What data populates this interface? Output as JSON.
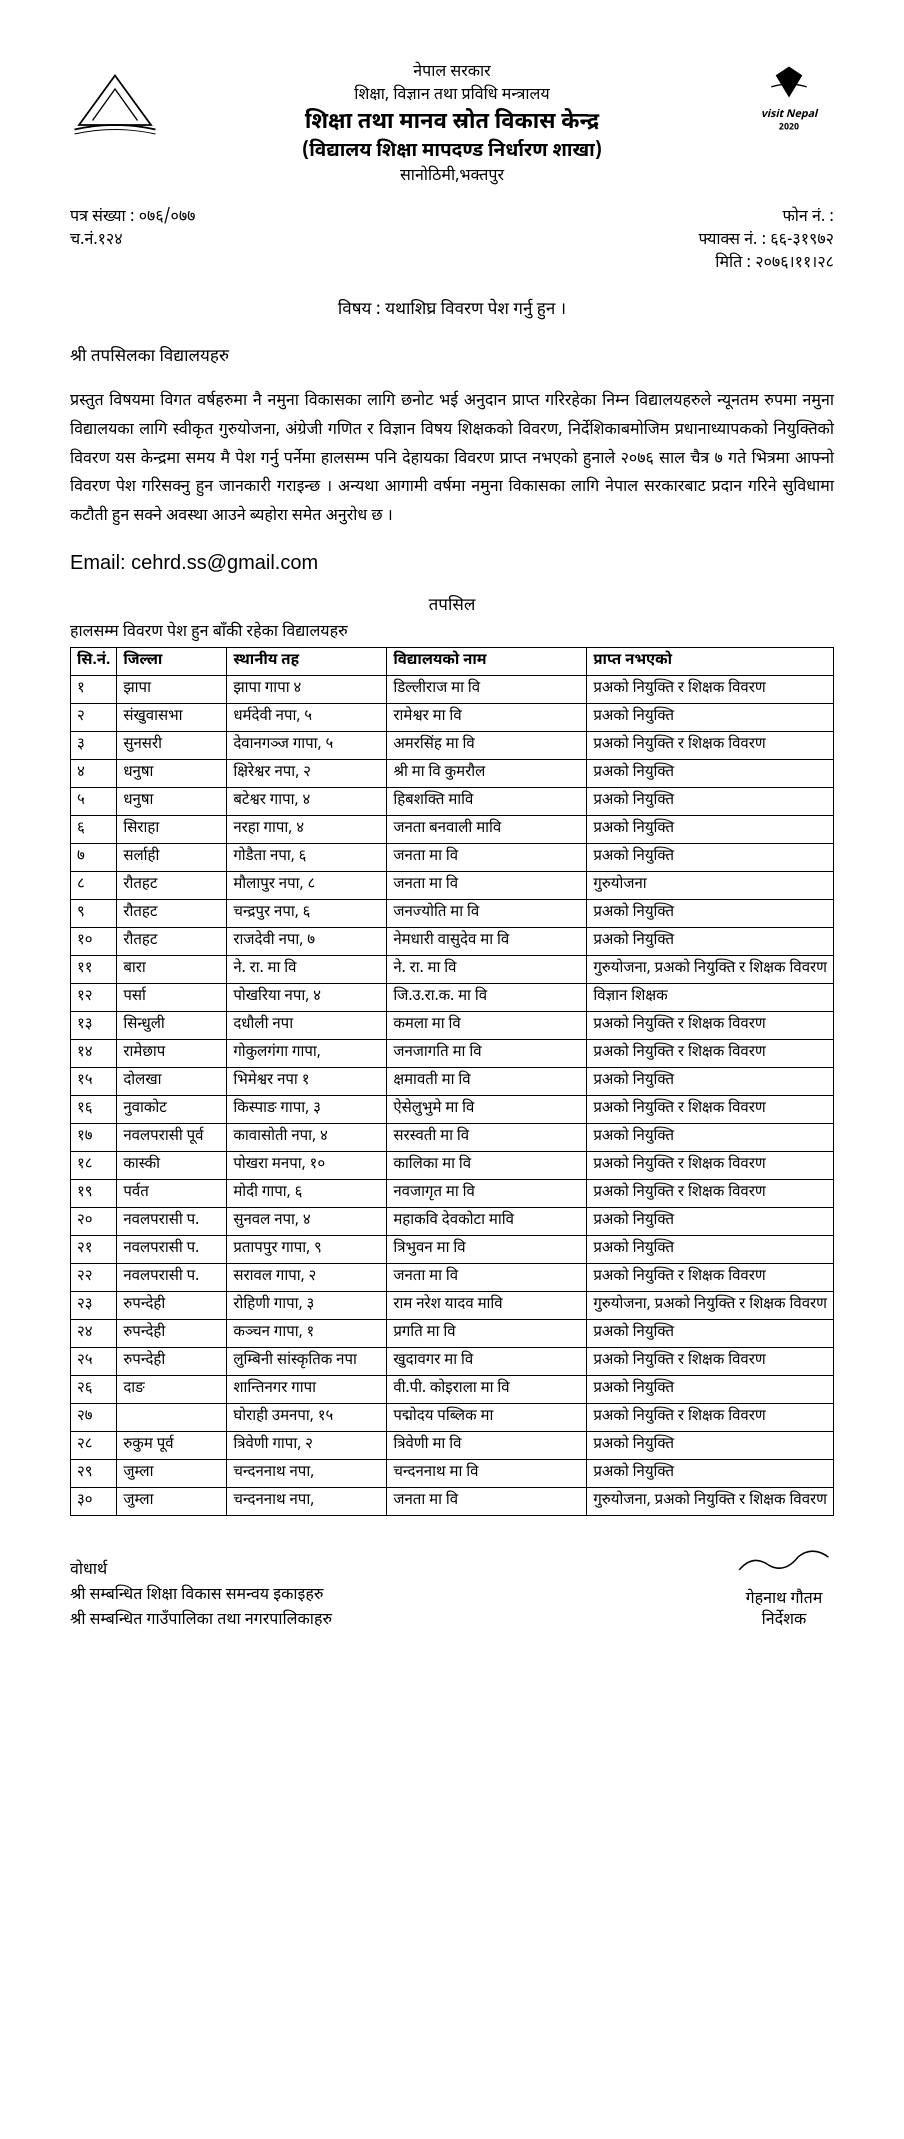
{
  "header": {
    "gov": "नेपाल सरकार",
    "ministry": "शिक्षा, विज्ञान तथा प्रविधि मन्त्रालय",
    "center": "शिक्षा तथा मानव स्रोत विकास केन्द्र",
    "branch": "(विद्यालय शिक्षा मापदण्ड निर्धारण शाखा)",
    "address": "सानोठिमी,भक्तपुर"
  },
  "ref": {
    "patra_label": "पत्र संख्या : ०७६/०७७",
    "cha_label": "च.नं.१२४",
    "phone_label": "फोन नं. :",
    "fax_label": "फ्याक्स नं. : ६६-३१९७२",
    "date_label": "मिति : २०७६।११।२८"
  },
  "subject_label": "विषय : यथाशिघ्र विवरण पेश गर्नु हुन ।",
  "addressee": "श्री तपसिलका विद्यालयहरु",
  "body": "प्रस्तुत विषयमा विगत वर्षहरुमा नै नमुना विकासका लागि छनोट भई अनुदान प्राप्त गरिरहेका निम्न विद्यालयहरुले न्यूनतम रुपमा नमुना विद्यालयका लागि स्वीकृत गुरुयोजना, अंग्रेजी गणित र विज्ञान विषय शिक्षकको विवरण, निर्देशिकाबमोजिम प्रधानाध्यापकको नियुक्तिको विवरण यस केन्द्रमा समय मै पेश गर्नु पर्नेमा हालसम्म पनि देहायका विवरण प्राप्त नभएको हुनाले २०७६ साल चैत्र ७ गते भित्रमा आफ्नो विवरण पेश गरिसक्नु हुन जानकारी गराइन्छ । अन्यथा आगामी वर्षमा नमुना विकासका लागि नेपाल सरकारबाट प्रदान गरिने सुविधामा कटौती हुन सक्ने अवस्था आउने ब्यहोरा समेत अनुरोध छ ।",
  "email_label": "Email: cehrd.ss@gmail.com",
  "tapasil": "तपसिल",
  "table_caption": "हालसम्म विवरण पेश हुन बाँकी रहेका विद्यालयहरु",
  "columns": {
    "sn": "सि.नं.",
    "district": "जिल्ला",
    "local": "स्थानीय तह",
    "school": "विद्यालयको नाम",
    "missing": "प्राप्त नभएको"
  },
  "rows": [
    {
      "sn": "१",
      "district": "झापा",
      "local": "झापा गापा ४",
      "school": "डिल्लीराज मा वि",
      "missing": "प्रअको नियुक्ति र शिक्षक विवरण"
    },
    {
      "sn": "२",
      "district": "संखुवासभा",
      "local": "धर्मदेवी नपा, ५",
      "school": "रामेश्वर मा वि",
      "missing": "प्रअको नियुक्ति"
    },
    {
      "sn": "३",
      "district": "सुनसरी",
      "local": "देवानगञ्ज गापा, ५",
      "school": "अमरसिंह मा वि",
      "missing": "प्रअको नियुक्ति र शिक्षक विवरण"
    },
    {
      "sn": "४",
      "district": "धनुषा",
      "local": "क्षिरेश्वर नपा, २",
      "school": "श्री मा वि कुमरौल",
      "missing": "प्रअको नियुक्ति"
    },
    {
      "sn": "५",
      "district": "धनुषा",
      "local": "बटेश्वर गापा, ४",
      "school": "हिबशक्ति मावि",
      "missing": "प्रअको नियुक्ति"
    },
    {
      "sn": "६",
      "district": "सिराहा",
      "local": "नरहा गापा, ४",
      "school": "जनता बनवाली मावि",
      "missing": "प्रअको नियुक्ति"
    },
    {
      "sn": "७",
      "district": "सर्लाही",
      "local": "गोडैता नपा, ६",
      "school": "जनता मा वि",
      "missing": "प्रअको नियुक्ति"
    },
    {
      "sn": "८",
      "district": "रौतहट",
      "local": "मौलापुर नपा, ८",
      "school": "जनता मा वि",
      "missing": "गुरुयोजना"
    },
    {
      "sn": "९",
      "district": "रौतहट",
      "local": "चन्द्रपुर नपा, ६",
      "school": "जनज्योति मा वि",
      "missing": "प्रअको नियुक्ति"
    },
    {
      "sn": "१०",
      "district": "रौतहट",
      "local": "राजदेवी नपा, ७",
      "school": "नेमधारी वासुदेव मा वि",
      "missing": "प्रअको नियुक्ति"
    },
    {
      "sn": "११",
      "district": "बारा",
      "local": "ने. रा. मा वि",
      "school": "ने. रा. मा वि",
      "missing": "गुरुयोजना, प्रअको नियुक्ति र शिक्षक विवरण"
    },
    {
      "sn": "१२",
      "district": "पर्सा",
      "local": "पोखरिया नपा, ४",
      "school": "जि.उ.रा.क. मा वि",
      "missing": "विज्ञान शिक्षक"
    },
    {
      "sn": "१३",
      "district": "सिन्धुली",
      "local": "दधौली नपा",
      "school": "कमला मा वि",
      "missing": "प्रअको नियुक्ति र शिक्षक विवरण"
    },
    {
      "sn": "१४",
      "district": "रामेछाप",
      "local": "गोकुलगंगा गापा,",
      "school": "जनजागति मा वि",
      "missing": "प्रअको नियुक्ति र शिक्षक विवरण"
    },
    {
      "sn": "१५",
      "district": "दोलखा",
      "local": "भिमेश्वर नपा १",
      "school": "क्षमावती मा वि",
      "missing": "प्रअको नियुक्ति"
    },
    {
      "sn": "१६",
      "district": "नुवाकोट",
      "local": "किस्पाङ गापा, ३",
      "school": "ऐसेलुभुमे मा वि",
      "missing": "प्रअको नियुक्ति र शिक्षक विवरण"
    },
    {
      "sn": "१७",
      "district": "नवलपरासी पूर्व",
      "local": "कावासोती नपा, ४",
      "school": "सरस्वती मा वि",
      "missing": "प्रअको नियुक्ति"
    },
    {
      "sn": "१८",
      "district": "कास्की",
      "local": "पोखरा मनपा, १०",
      "school": "कालिका मा वि",
      "missing": "प्रअको नियुक्ति र शिक्षक विवरण"
    },
    {
      "sn": "१९",
      "district": "पर्वत",
      "local": "मोदी गापा, ६",
      "school": "नवजागृत मा वि",
      "missing": "प्रअको नियुक्ति र शिक्षक विवरण"
    },
    {
      "sn": "२०",
      "district": "नवलपरासी प.",
      "local": "सुनवल नपा, ४",
      "school": "महाकवि देवकोटा मावि",
      "missing": "प्रअको नियुक्ति"
    },
    {
      "sn": "२१",
      "district": "नवलपरासी प.",
      "local": "प्रतापपुर गापा, ९",
      "school": "त्रिभुवन मा वि",
      "missing": "प्रअको नियुक्ति"
    },
    {
      "sn": "२२",
      "district": "नवलपरासी प.",
      "local": "सरावल गापा, २",
      "school": "जनता मा वि",
      "missing": "प्रअको नियुक्ति र शिक्षक विवरण"
    },
    {
      "sn": "२३",
      "district": "रुपन्देही",
      "local": "रोहिणी गापा, ३",
      "school": "राम नरेश यादव मावि",
      "missing": "गुरुयोजना, प्रअको नियुक्ति र शिक्षक विवरण"
    },
    {
      "sn": "२४",
      "district": "रुपन्देही",
      "local": "कञ्चन गापा, १",
      "school": "प्रगति मा वि",
      "missing": "प्रअको नियुक्ति"
    },
    {
      "sn": "२५",
      "district": "रुपन्देही",
      "local": "लुम्बिनी सांस्कृतिक नपा",
      "school": "खुदावगर मा वि",
      "missing": "प्रअको नियुक्ति र शिक्षक विवरण"
    },
    {
      "sn": "२६",
      "district": "दाङ",
      "local": "शान्तिनगर गापा",
      "school": "वी.पी. कोइराला मा वि",
      "missing": "प्रअको नियुक्ति"
    },
    {
      "sn": "२७",
      "district": "",
      "local": "घोराही उमनपा, १५",
      "school": "पद्मोदय पब्लिक मा",
      "missing": "प्रअको नियुक्ति र शिक्षक विवरण"
    },
    {
      "sn": "२८",
      "district": "रुकुम पूर्व",
      "local": "त्रिवेणी गापा, २",
      "school": "त्रिवेणी मा वि",
      "missing": "प्रअको नियुक्ति"
    },
    {
      "sn": "२९",
      "district": "जुम्ला",
      "local": "चन्दननाथ नपा,",
      "school": "चन्दननाथ मा वि",
      "missing": "प्रअको नियुक्ति"
    },
    {
      "sn": "३०",
      "district": "जुम्ला",
      "local": "चन्दननाथ नपा,",
      "school": "जनता मा वि",
      "missing": "गुरुयोजना, प्रअको नियुक्ति र शिक्षक विवरण"
    }
  ],
  "footer": {
    "bodharth": "वोधार्थ",
    "line1": "श्री सम्बन्धित शिक्षा विकास समन्वय इकाइहरु",
    "line2": "श्री सम्बन्धित गाउँपालिका तथा नगरपालिकाहरु",
    "signatory_name": "गेहनाथ गौतम",
    "signatory_title": "निर्देशक"
  }
}
